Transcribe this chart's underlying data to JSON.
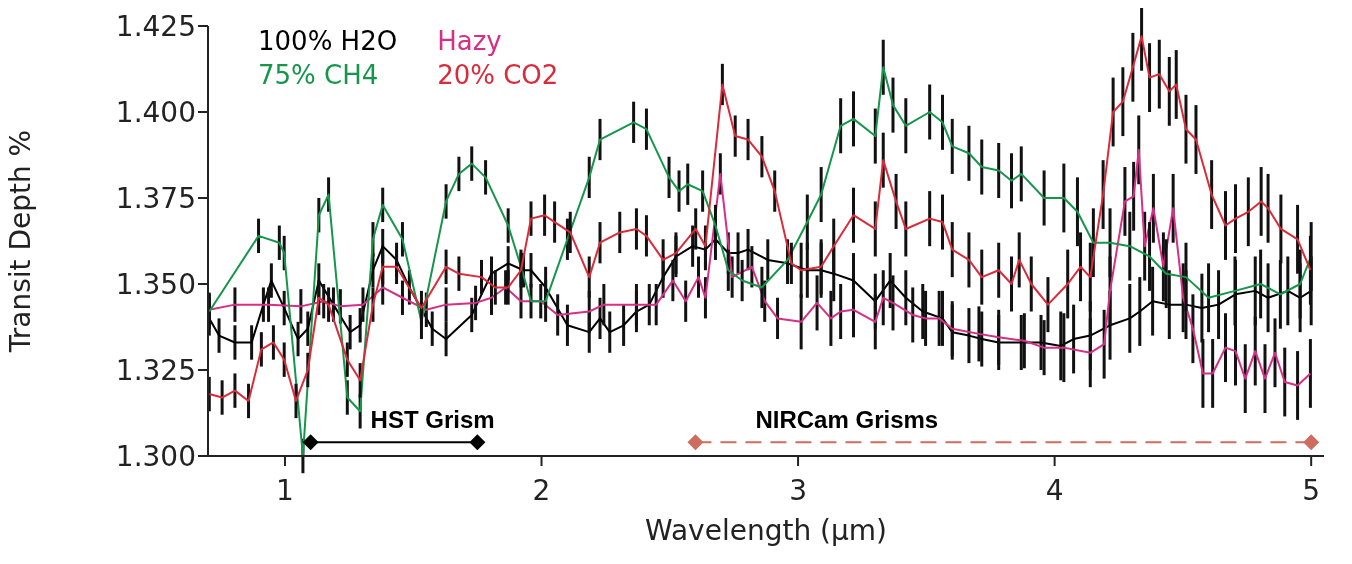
{
  "chart_data": {
    "type": "line",
    "xlabel": "Wavelength (μm)",
    "ylabel": "Transit Depth %",
    "xlim": [
      0.7,
      5.05
    ],
    "xticks": [
      1,
      2,
      3,
      4,
      5
    ],
    "ylim": [
      1.3,
      1.425
    ],
    "yticks": [
      {
        "value": 1.3,
        "label": "1.300"
      },
      1.325,
      {
        "value": 1.35,
        "label": "1.350"
      },
      1.375,
      {
        "value": 1.4,
        "label": "1.400"
      },
      1.425
    ],
    "legend": "top left",
    "marker": "none",
    "annotations": [
      "HST Grism",
      "NIRCam Grisms"
    ],
    "series": [
      {
        "name": "100% H2O",
        "color": "#000000",
        "x": [
          0.705,
          0.743,
          0.805,
          0.87,
          0.916,
          0.947,
          0.997,
          1.051,
          1.089,
          1.132,
          1.189,
          1.254,
          1.293,
          1.343,
          1.381,
          1.435,
          1.485,
          1.574,
          1.628,
          1.728,
          1.805,
          1.87,
          1.93,
          1.959,
          2.016,
          2.101,
          2.186,
          2.228,
          2.266,
          2.32,
          2.37,
          2.42,
          2.474,
          2.524,
          2.589,
          2.639,
          2.678,
          2.728,
          2.766,
          2.805,
          2.882,
          2.959,
          3.036,
          3.09,
          3.139,
          3.216,
          3.301,
          3.359,
          3.42,
          3.486,
          3.563,
          3.601,
          3.666,
          3.716,
          3.782,
          3.87,
          3.947,
          4.024,
          4.074,
          4.139,
          4.216,
          4.293,
          4.332,
          4.382,
          4.447,
          4.512,
          4.574,
          4.639,
          4.705,
          4.782,
          4.832,
          4.909,
          4.957,
          5.0
        ],
        "values": [
          1.34,
          1.335,
          1.333,
          1.333,
          1.344,
          1.351,
          1.343,
          1.334,
          1.337,
          1.351,
          1.344,
          1.336,
          1.338,
          1.354,
          1.361,
          1.357,
          1.349,
          1.337,
          1.334,
          1.341,
          1.353,
          1.356,
          1.354,
          1.354,
          1.349,
          1.338,
          1.336,
          1.34,
          1.336,
          1.338,
          1.342,
          1.344,
          1.352,
          1.358,
          1.361,
          1.36,
          1.363,
          1.359,
          1.359,
          1.36,
          1.357,
          1.356,
          1.354,
          1.354,
          1.353,
          1.351,
          1.345,
          1.351,
          1.346,
          1.342,
          1.34,
          1.336,
          1.335,
          1.334,
          1.333,
          1.333,
          1.333,
          1.332,
          1.334,
          1.335,
          1.338,
          1.34,
          1.342,
          1.345,
          1.344,
          1.344,
          1.343,
          1.344,
          1.347,
          1.348,
          1.346,
          1.348,
          1.346,
          1.348
        ],
        "errors": [
          0.005,
          0.005,
          0.005,
          0.005,
          0.005,
          0.005,
          0.005,
          0.005,
          0.005,
          0.005,
          0.005,
          0.005,
          0.005,
          0.005,
          0.005,
          0.005,
          0.005,
          0.005,
          0.005,
          0.005,
          0.005,
          0.005,
          0.005,
          0.005,
          0.006,
          0.006,
          0.006,
          0.006,
          0.006,
          0.006,
          0.006,
          0.006,
          0.006,
          0.006,
          0.006,
          0.006,
          0.006,
          0.006,
          0.006,
          0.006,
          0.006,
          0.006,
          0.008,
          0.008,
          0.008,
          0.008,
          0.008,
          0.008,
          0.008,
          0.008,
          0.008,
          0.008,
          0.008,
          0.008,
          0.008,
          0.008,
          0.008,
          0.01,
          0.01,
          0.01,
          0.01,
          0.01,
          0.01,
          0.01,
          0.01,
          0.01,
          0.01,
          0.01,
          0.01,
          0.01,
          0.01,
          0.01,
          0.01,
          0.01
        ]
      },
      {
        "name": "Hazy",
        "color": "#d62f86",
        "x": [
          0.705,
          0.805,
          0.936,
          1.062,
          1.151,
          1.216,
          1.304,
          1.381,
          1.458,
          1.551,
          1.628,
          1.743,
          1.805,
          1.86,
          1.92,
          1.997,
          2.063,
          2.186,
          2.243,
          2.37,
          2.447,
          2.512,
          2.562,
          2.612,
          2.639,
          2.697,
          2.743,
          2.82,
          2.87,
          2.92,
          3.012,
          3.074,
          3.128,
          3.166,
          3.216,
          3.301,
          3.332,
          3.37,
          3.447,
          3.497,
          3.55,
          3.601,
          3.705,
          3.782,
          3.882,
          3.959,
          4.036,
          4.139,
          4.193,
          4.216,
          4.274,
          4.308,
          4.328,
          4.351,
          4.385,
          4.424,
          4.462,
          4.501,
          4.539,
          4.578,
          4.616,
          4.666,
          4.705,
          4.743,
          4.782,
          4.82,
          4.859,
          4.897,
          4.947,
          4.997
        ],
        "values": [
          1.3425,
          1.344,
          1.344,
          1.3435,
          1.345,
          1.3435,
          1.344,
          1.349,
          1.346,
          1.3425,
          1.344,
          1.3445,
          1.346,
          1.349,
          1.345,
          1.345,
          1.341,
          1.342,
          1.344,
          1.344,
          1.344,
          1.351,
          1.345,
          1.352,
          1.346,
          1.382,
          1.352,
          1.355,
          1.345,
          1.34,
          1.339,
          1.3445,
          1.34,
          1.342,
          1.3425,
          1.339,
          1.346,
          1.3445,
          1.341,
          1.34,
          1.34,
          1.337,
          1.3355,
          1.3345,
          1.3335,
          1.3315,
          1.3315,
          1.33,
          1.3325,
          1.348,
          1.374,
          1.3755,
          1.389,
          1.361,
          1.372,
          1.355,
          1.372,
          1.346,
          1.337,
          1.324,
          1.324,
          1.3315,
          1.3305,
          1.3225,
          1.3305,
          1.3225,
          1.33,
          1.3215,
          1.3205,
          1.324
        ],
        "errors": [
          0.005,
          0.005,
          0.005,
          0.005,
          0.005,
          0.005,
          0.005,
          0.005,
          0.005,
          0.005,
          0.005,
          0.005,
          0.005,
          0.005,
          0.005,
          0.005,
          0.006,
          0.006,
          0.006,
          0.006,
          0.006,
          0.006,
          0.006,
          0.006,
          0.006,
          0.006,
          0.006,
          0.006,
          0.006,
          0.006,
          0.008,
          0.008,
          0.008,
          0.008,
          0.008,
          0.008,
          0.008,
          0.008,
          0.008,
          0.008,
          0.008,
          0.008,
          0.008,
          0.008,
          0.008,
          0.008,
          0.01,
          0.01,
          0.01,
          0.01,
          0.01,
          0.01,
          0.01,
          0.01,
          0.01,
          0.01,
          0.01,
          0.01,
          0.01,
          0.01,
          0.01,
          0.01,
          0.01,
          0.01,
          0.01,
          0.01,
          0.01,
          0.01,
          0.01,
          0.01
        ]
      },
      {
        "name": "75% CH4",
        "color": "#15964b",
        "x": [
          0.705,
          0.897,
          0.978,
          0.997,
          1.07,
          1.132,
          1.17,
          1.243,
          1.293,
          1.343,
          1.381,
          1.458,
          1.532,
          1.628,
          1.678,
          1.728,
          1.782,
          1.87,
          1.92,
          1.959,
          2.016,
          2.101,
          2.186,
          2.228,
          2.359,
          2.409,
          2.497,
          2.536,
          2.57,
          2.628,
          2.678,
          2.728,
          2.782,
          2.859,
          2.959,
          3.036,
          3.09,
          3.166,
          3.216,
          3.301,
          3.332,
          3.37,
          3.42,
          3.513,
          3.563,
          3.601,
          3.666,
          3.716,
          3.782,
          3.832,
          3.87,
          3.959,
          4.036,
          4.089,
          4.151,
          4.216,
          4.293,
          4.37,
          4.435,
          4.512,
          4.6,
          4.703,
          4.803,
          4.88,
          4.957,
          5.0
        ],
        "values": [
          1.342,
          1.364,
          1.362,
          1.359,
          1.3,
          1.37,
          1.376,
          1.317,
          1.313,
          1.363,
          1.373,
          1.363,
          1.339,
          1.374,
          1.382,
          1.385,
          1.381,
          1.367,
          1.355,
          1.345,
          1.345,
          1.363,
          1.381,
          1.392,
          1.397,
          1.395,
          1.381,
          1.377,
          1.379,
          1.377,
          1.367,
          1.354,
          1.351,
          1.349,
          1.357,
          1.368,
          1.376,
          1.396,
          1.398,
          1.393,
          1.413,
          1.402,
          1.396,
          1.4,
          1.397,
          1.39,
          1.388,
          1.384,
          1.383,
          1.38,
          1.382,
          1.375,
          1.375,
          1.371,
          1.362,
          1.362,
          1.361,
          1.358,
          1.353,
          1.352,
          1.346,
          1.348,
          1.35,
          1.347,
          1.35,
          1.358
        ],
        "errors": [
          0.005,
          0.005,
          0.005,
          0.005,
          0.005,
          0.005,
          0.005,
          0.005,
          0.005,
          0.005,
          0.005,
          0.005,
          0.005,
          0.005,
          0.005,
          0.005,
          0.005,
          0.005,
          0.005,
          0.005,
          0.006,
          0.006,
          0.006,
          0.006,
          0.006,
          0.006,
          0.006,
          0.006,
          0.006,
          0.006,
          0.006,
          0.006,
          0.006,
          0.006,
          0.006,
          0.008,
          0.008,
          0.008,
          0.008,
          0.008,
          0.008,
          0.008,
          0.008,
          0.008,
          0.008,
          0.008,
          0.008,
          0.008,
          0.008,
          0.008,
          0.008,
          0.008,
          0.01,
          0.01,
          0.01,
          0.01,
          0.01,
          0.01,
          0.01,
          0.01,
          0.01,
          0.01,
          0.01,
          0.01,
          0.01,
          0.01
        ]
      },
      {
        "name": "20% CO2",
        "color": "#d92b3a",
        "x": [
          0.705,
          0.755,
          0.805,
          0.858,
          0.908,
          0.955,
          0.997,
          1.043,
          1.089,
          1.132,
          1.17,
          1.243,
          1.293,
          1.343,
          1.381,
          1.435,
          1.532,
          1.628,
          1.678,
          1.766,
          1.82,
          1.87,
          1.92,
          1.959,
          2.012,
          2.051,
          2.112,
          2.186,
          2.228,
          2.305,
          2.37,
          2.409,
          2.474,
          2.524,
          2.601,
          2.639,
          2.705,
          2.755,
          2.805,
          2.859,
          2.909,
          2.974,
          3.012,
          3.09,
          3.139,
          3.216,
          3.301,
          3.332,
          3.382,
          3.42,
          3.513,
          3.563,
          3.601,
          3.666,
          3.716,
          3.782,
          3.832,
          3.862,
          3.909,
          3.974,
          4.051,
          4.101,
          4.139,
          4.189,
          4.228,
          4.266,
          4.305,
          4.339,
          4.37,
          4.408,
          4.447,
          4.474,
          4.512,
          4.551,
          4.612,
          4.666,
          4.705,
          4.755,
          4.805,
          4.832,
          4.882,
          4.947,
          4.997
        ],
        "values": [
          1.318,
          1.317,
          1.319,
          1.316,
          1.331,
          1.333,
          1.328,
          1.316,
          1.325,
          1.346,
          1.344,
          1.328,
          1.322,
          1.344,
          1.355,
          1.355,
          1.343,
          1.355,
          1.353,
          1.352,
          1.349,
          1.349,
          1.354,
          1.369,
          1.37,
          1.368,
          1.365,
          1.352,
          1.362,
          1.365,
          1.366,
          1.364,
          1.357,
          1.359,
          1.366,
          1.361,
          1.408,
          1.393,
          1.392,
          1.387,
          1.377,
          1.356,
          1.354,
          1.355,
          1.361,
          1.37,
          1.366,
          1.386,
          1.374,
          1.366,
          1.369,
          1.368,
          1.36,
          1.357,
          1.352,
          1.354,
          1.35,
          1.357,
          1.35,
          1.344,
          1.35,
          1.355,
          1.352,
          1.376,
          1.4,
          1.403,
          1.413,
          1.422,
          1.41,
          1.411,
          1.406,
          1.408,
          1.395,
          1.392,
          1.376,
          1.367,
          1.369,
          1.371,
          1.374,
          1.372,
          1.366,
          1.363,
          1.354
        ],
        "errors": [
          0.005,
          0.005,
          0.005,
          0.005,
          0.005,
          0.005,
          0.005,
          0.005,
          0.005,
          0.005,
          0.005,
          0.005,
          0.005,
          0.005,
          0.005,
          0.005,
          0.005,
          0.005,
          0.005,
          0.005,
          0.005,
          0.005,
          0.005,
          0.005,
          0.006,
          0.006,
          0.006,
          0.006,
          0.006,
          0.006,
          0.006,
          0.006,
          0.006,
          0.006,
          0.006,
          0.006,
          0.006,
          0.006,
          0.006,
          0.006,
          0.006,
          0.006,
          0.008,
          0.008,
          0.008,
          0.008,
          0.008,
          0.008,
          0.008,
          0.008,
          0.008,
          0.008,
          0.008,
          0.008,
          0.008,
          0.008,
          0.008,
          0.008,
          0.008,
          0.008,
          0.01,
          0.01,
          0.01,
          0.01,
          0.01,
          0.01,
          0.01,
          0.01,
          0.01,
          0.01,
          0.01,
          0.01,
          0.01,
          0.01,
          0.01,
          0.01,
          0.01,
          0.01,
          0.01,
          0.01,
          0.01,
          0.01,
          0.01
        ]
      },
      {
        "type": "line",
        "color": "#000000",
        "marker": "diamond",
        "x": [
          1.1,
          1.75
        ],
        "values": [
          1.304,
          1.304
        ]
      },
      {
        "type": "line",
        "color": "#cd6d5f",
        "marker": "diamond",
        "line_style": "dashed",
        "x": [
          2.6,
          5.0
        ],
        "values": [
          1.304,
          1.304
        ]
      }
    ]
  }
}
